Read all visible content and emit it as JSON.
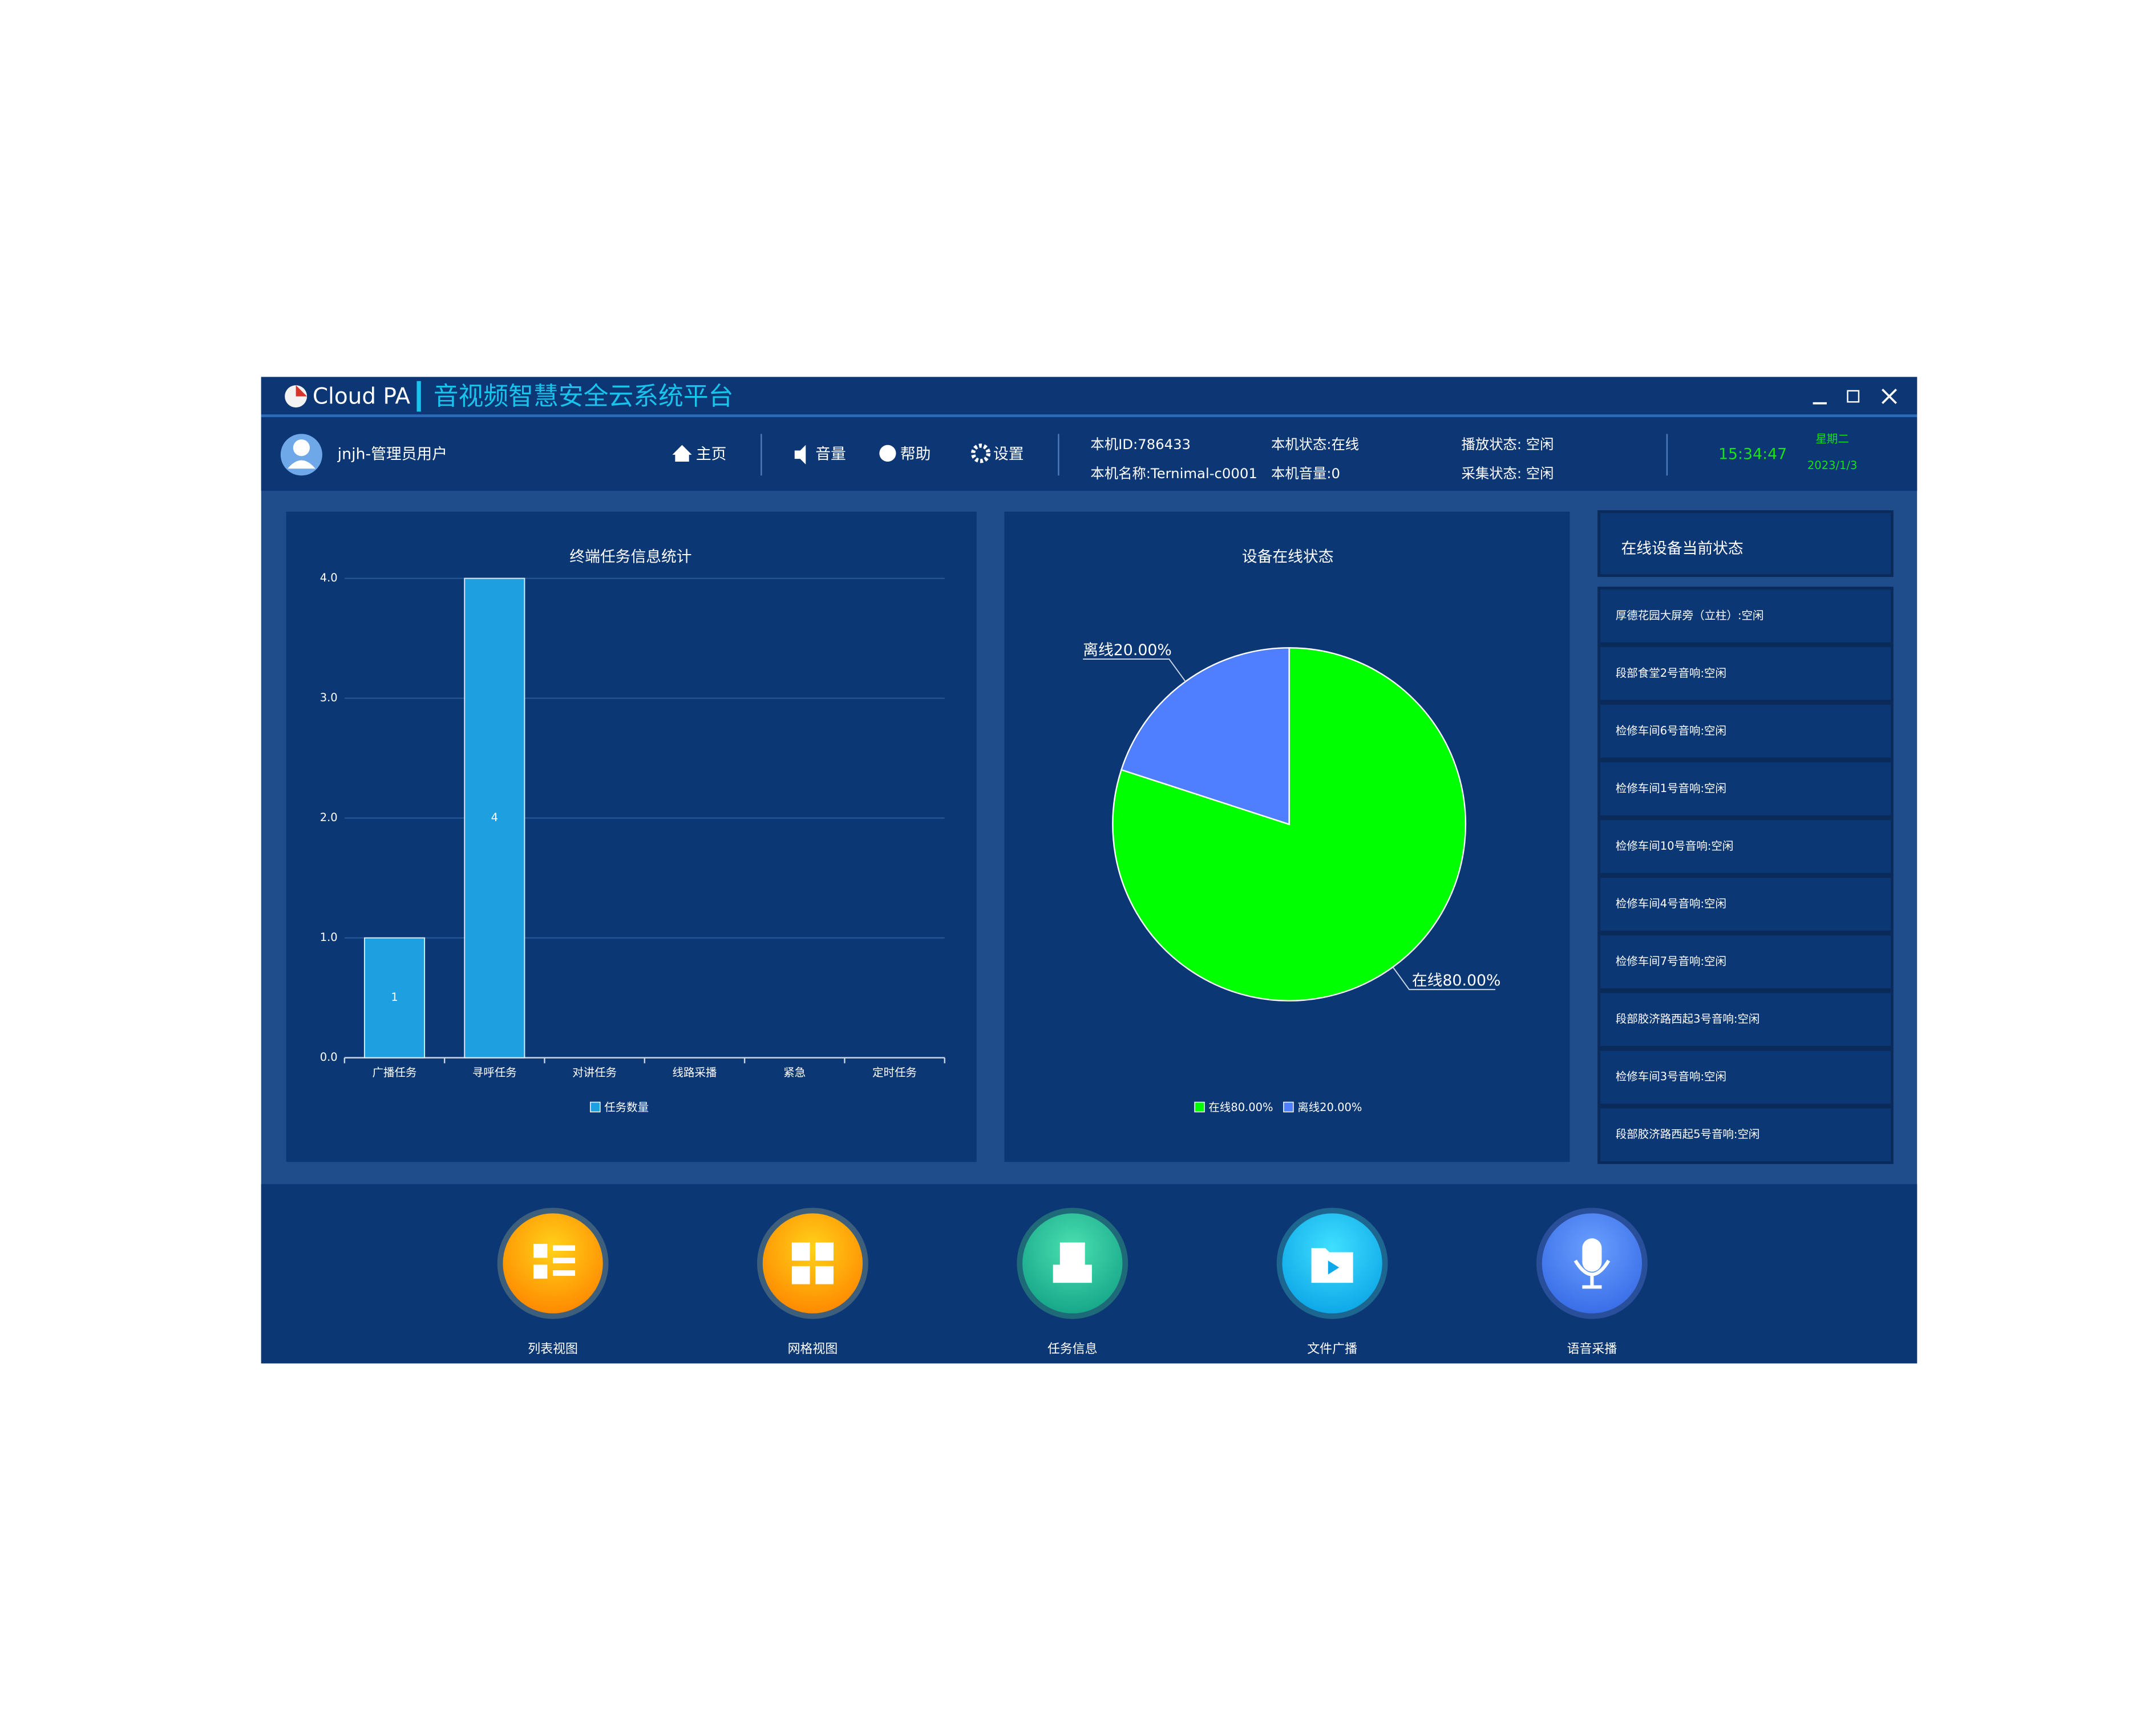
{
  "window": {
    "logo": "Cloud PA",
    "title": "音视频智慧安全云系统平台"
  },
  "toolbar": {
    "user": "jnjh-管理员用户",
    "menu": [
      "主页",
      "音量",
      "帮助",
      "设置"
    ],
    "info": [
      "本机ID:786433",
      "本机名称:Ternimal-c0001",
      "本机状态:在线",
      "本机音量:0",
      "播放状态: 空闲",
      "采集状态: 空闲"
    ],
    "time": "15:34:47",
    "weekday": "星期二",
    "date": "2023/1/3"
  },
  "bar_chart": {
    "type": "bar",
    "title": "终端任务信息统计",
    "categories": [
      "广播任务",
      "寻呼任务",
      "对讲任务",
      "线路采播",
      "紧急",
      "定时任务"
    ],
    "series": [
      {
        "name": "任务数量",
        "color": "#1e9fdf",
        "values": [
          1,
          4,
          0,
          0,
          0,
          0
        ]
      }
    ],
    "ylim": [
      0,
      4
    ],
    "yticks": [
      {
        "value": 0,
        "label": "0.0"
      },
      {
        "value": 1,
        "label": "1.0"
      },
      {
        "value": 2,
        "label": "2.0"
      },
      {
        "value": 3,
        "label": "3.0"
      },
      {
        "value": 4,
        "label": "4.0"
      }
    ],
    "grid": true
  },
  "pie_chart": {
    "type": "pie",
    "title": "设备在线状态",
    "categories": [
      "在线80.00%",
      "离线20.00%"
    ],
    "values": [
      80,
      20
    ],
    "colors": [
      "#00ff00",
      "#4f7fff"
    ]
  },
  "device_panel": {
    "title": "在线设备当前状态",
    "items": [
      "厚德花园大屏旁（立柱）:空闲",
      "段部食堂2号音响:空闲",
      "检修车间6号音响:空闲",
      "检修车间1号音响:空闲",
      "检修车间10号音响:空闲",
      "检修车间4号音响:空闲",
      "检修车间7号音响:空闲",
      "段部胶济路西起3号音响:空闲",
      "检修车间3号音响:空闲",
      "段部胶济路西起5号音响:空闲"
    ]
  },
  "buttons": [
    "列表视图",
    "网格视图",
    "任务信息",
    "文件广播",
    "语音采播"
  ]
}
